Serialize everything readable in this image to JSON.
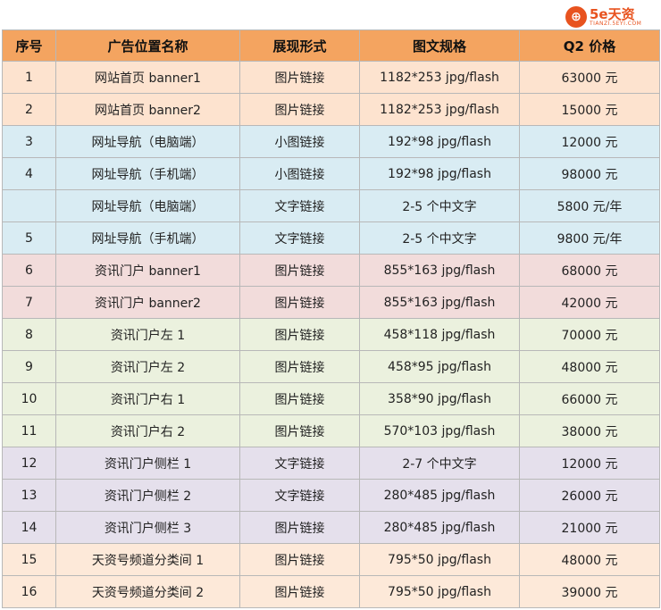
{
  "logo": {
    "mark": "⊕",
    "main": "5e天资",
    "sub": "TIANZI.5EYI.COM"
  },
  "headers": [
    "序号",
    "广告位置名称",
    "展现形式",
    "图文规格",
    "Q2 价格"
  ],
  "rows": [
    {
      "no": "1",
      "name": "网站首页 banner1",
      "form": "图片链接",
      "spec": "1182*253 jpg/flash",
      "price": "63000 元",
      "group": "orange"
    },
    {
      "no": "2",
      "name": "网站首页 banner2",
      "form": "图片链接",
      "spec": "1182*253 jpg/flash",
      "price": "15000 元",
      "group": "orange"
    },
    {
      "no": "3",
      "name": "网址导航（电脑端）",
      "form": "小图链接",
      "spec": "192*98 jpg/flash",
      "price": "12000 元",
      "group": "blue"
    },
    {
      "no": "4",
      "name": "网址导航（手机端）",
      "form": "小图链接",
      "spec": "192*98 jpg/flash",
      "price": "98000 元",
      "group": "blue"
    },
    {
      "no": "",
      "name": "网址导航（电脑端）",
      "form": "文字链接",
      "spec": "2-5 个中文字",
      "price": "5800 元/年",
      "group": "blue"
    },
    {
      "no": "5",
      "name": "网址导航（手机端）",
      "form": "文字链接",
      "spec": "2-5 个中文字",
      "price": "9800 元/年",
      "group": "blue"
    },
    {
      "no": "6",
      "name": "资讯门户 banner1",
      "form": "图片链接",
      "spec": "855*163 jpg/flash",
      "price": "68000 元",
      "group": "pink"
    },
    {
      "no": "7",
      "name": "资讯门户 banner2",
      "form": "图片链接",
      "spec": "855*163 jpg/flash",
      "price": "42000 元",
      "group": "pink"
    },
    {
      "no": "8",
      "name": "资讯门户左 1",
      "form": "图片链接",
      "spec": "458*118 jpg/flash",
      "price": "70000 元",
      "group": "green"
    },
    {
      "no": "9",
      "name": "资讯门户左 2",
      "form": "图片链接",
      "spec": "458*95 jpg/flash",
      "price": "48000 元",
      "group": "green"
    },
    {
      "no": "10",
      "name": "资讯门户右 1",
      "form": "图片链接",
      "spec": "358*90 jpg/flash",
      "price": "66000 元",
      "group": "green"
    },
    {
      "no": "11",
      "name": "资讯门户右 2",
      "form": "图片链接",
      "spec": "570*103 jpg/flash",
      "price": "38000 元",
      "group": "green"
    },
    {
      "no": "12",
      "name": "资讯门户侧栏 1",
      "form": "文字链接",
      "spec": "2-7 个中文字",
      "price": "12000 元",
      "group": "purple"
    },
    {
      "no": "13",
      "name": "资讯门户侧栏 2",
      "form": "文字链接",
      "spec": "280*485 jpg/flash",
      "price": "26000 元",
      "group": "purple"
    },
    {
      "no": "14",
      "name": "资讯门户侧栏 3",
      "form": "图片链接",
      "spec": "280*485 jpg/flash",
      "price": "21000 元",
      "group": "purple"
    },
    {
      "no": "15",
      "name": "天资号频道分类间 1",
      "form": "图片链接",
      "spec": "795*50 jpg/flash",
      "price": "48000 元",
      "group": "orange2"
    },
    {
      "no": "16",
      "name": "天资号频道分类间 2",
      "form": "图片链接",
      "spec": "795*50 jpg/flash",
      "price": "39000 元",
      "group": "orange2"
    }
  ]
}
